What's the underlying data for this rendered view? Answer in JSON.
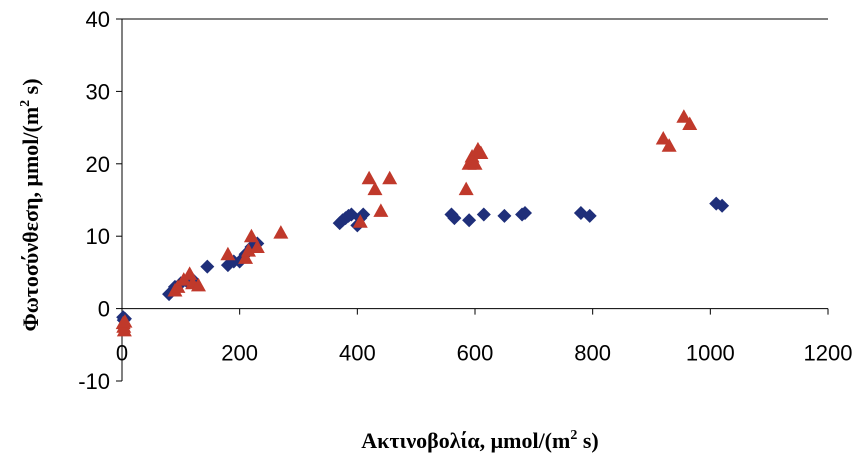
{
  "chart_data": {
    "type": "scatter",
    "title": "",
    "xlabel_main": "Ακτινοβολία, μmol/(m",
    "xlabel_sup": "2",
    "xlabel_tail": " s)",
    "ylabel_main": "Φωτοσύνθεση, μmol/(m",
    "ylabel_sup": "2",
    "ylabel_tail": " s)",
    "xlim": [
      0,
      1200
    ],
    "ylim": [
      -10,
      40
    ],
    "xticks": [
      0,
      200,
      400,
      600,
      800,
      1000,
      1200
    ],
    "yticks": [
      -10,
      0,
      10,
      20,
      30,
      40
    ],
    "grid": false,
    "legend": false,
    "series": [
      {
        "marker": "diamond",
        "color": "#1f2f7a",
        "points": [
          [
            2,
            -1.2
          ],
          [
            3,
            -1.6
          ],
          [
            5,
            -1.4
          ],
          [
            80,
            2
          ],
          [
            90,
            3
          ],
          [
            100,
            3.5
          ],
          [
            110,
            3.8
          ],
          [
            120,
            4
          ],
          [
            145,
            5.8
          ],
          [
            180,
            6
          ],
          [
            190,
            6.5
          ],
          [
            200,
            6.5
          ],
          [
            210,
            7.5
          ],
          [
            220,
            8.5
          ],
          [
            230,
            9
          ],
          [
            370,
            11.8
          ],
          [
            375,
            12.2
          ],
          [
            380,
            12.5
          ],
          [
            385,
            12.8
          ],
          [
            390,
            13
          ],
          [
            400,
            11.5
          ],
          [
            405,
            12.5
          ],
          [
            410,
            13
          ],
          [
            560,
            13
          ],
          [
            565,
            12.5
          ],
          [
            590,
            12.2
          ],
          [
            615,
            13
          ],
          [
            650,
            12.8
          ],
          [
            680,
            13
          ],
          [
            685,
            13.2
          ],
          [
            780,
            13.2
          ],
          [
            795,
            12.8
          ],
          [
            1010,
            14.5
          ],
          [
            1020,
            14.2
          ]
        ]
      },
      {
        "marker": "triangle",
        "color": "#c0392b",
        "points": [
          [
            2,
            -2
          ],
          [
            3,
            -2.5
          ],
          [
            4,
            -3
          ],
          [
            5,
            -1.8
          ],
          [
            90,
            2.5
          ],
          [
            95,
            3
          ],
          [
            105,
            4
          ],
          [
            115,
            4.8
          ],
          [
            120,
            3.5
          ],
          [
            130,
            3.2
          ],
          [
            180,
            7.5
          ],
          [
            210,
            7
          ],
          [
            215,
            8
          ],
          [
            220,
            10
          ],
          [
            230,
            8.5
          ],
          [
            270,
            10.5
          ],
          [
            405,
            12
          ],
          [
            420,
            18
          ],
          [
            430,
            16.5
          ],
          [
            440,
            13.5
          ],
          [
            455,
            18
          ],
          [
            585,
            16.5
          ],
          [
            590,
            20
          ],
          [
            595,
            21
          ],
          [
            600,
            20
          ],
          [
            605,
            22
          ],
          [
            610,
            21.5
          ],
          [
            920,
            23.5
          ],
          [
            930,
            22.5
          ],
          [
            955,
            26.5
          ],
          [
            965,
            25.5
          ]
        ]
      }
    ]
  }
}
